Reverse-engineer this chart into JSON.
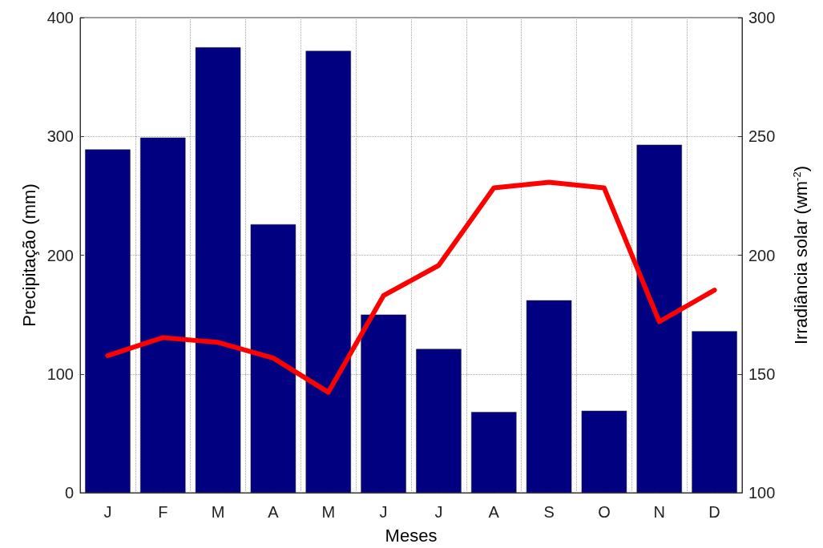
{
  "chart_data": {
    "type": "bar",
    "xlabel": "Meses",
    "ylabel": "Precipitação (mm)",
    "y2label": "Irradiância solar (wm$^{-2}$)",
    "categories": [
      "J",
      "F",
      "M",
      "A",
      "M",
      "J",
      "J",
      "A",
      "S",
      "O",
      "N",
      "D"
    ],
    "series": [
      {
        "color": "#000080",
        "values": [
          289,
          299,
          375,
          226,
          372,
          150,
          121,
          68,
          162,
          69,
          293,
          136
        ]
      },
      {
        "type": "line",
        "axis": "y2",
        "color": "#ff0000",
        "values": [
          157.7,
          165.3,
          163.3,
          156.7,
          142.3,
          183,
          195.7,
          228.3,
          230.7,
          228.3,
          172,
          185.3
        ]
      }
    ],
    "ylim": [
      0,
      400
    ],
    "yticks": [
      0,
      100,
      200,
      300,
      400
    ],
    "y2lim": [
      100,
      300
    ],
    "y2ticks": [
      100,
      150,
      200,
      250,
      300
    ],
    "grid": true,
    "marker": "none",
    "line_style": "solid"
  }
}
